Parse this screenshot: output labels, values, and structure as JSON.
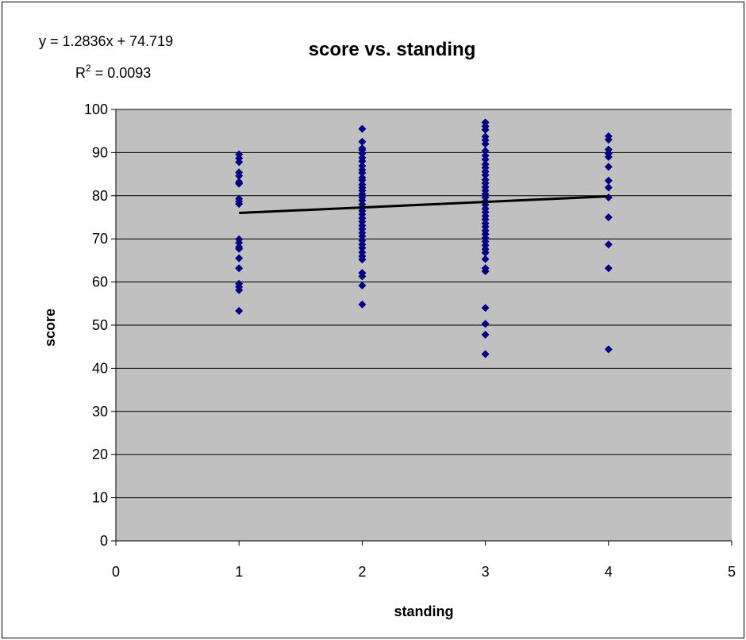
{
  "chart_data": {
    "type": "scatter",
    "title": "score vs. standing",
    "xlabel": "standing",
    "ylabel": "score",
    "xlim": [
      0,
      5
    ],
    "ylim": [
      0,
      100
    ],
    "xticks": [
      "0",
      "1",
      "2",
      "3",
      "4",
      "5"
    ],
    "yticks": [
      "0",
      "10",
      "20",
      "30",
      "40",
      "50",
      "60",
      "70",
      "80",
      "90",
      "100"
    ],
    "grid": "horizontal",
    "legend": "none",
    "colors": {
      "points": "#000080",
      "plot_area": "#c0c0c0",
      "trendline": "#000000"
    },
    "trendline": {
      "equation": "y = 1.2836x + 74.719",
      "r2_prefix": "R",
      "r2_sup": "2",
      "r2_suffix": " = 0.0093",
      "slope": 1.2836,
      "intercept": 74.719,
      "x_range": [
        1,
        4
      ]
    },
    "series": [
      {
        "points": [
          [
            1,
            89.6
          ],
          [
            1,
            88.7
          ],
          [
            1,
            87.8
          ],
          [
            1,
            85.4
          ],
          [
            1,
            84.6
          ],
          [
            1,
            83.2
          ],
          [
            1,
            82.8
          ],
          [
            1,
            79.3
          ],
          [
            1,
            78.7
          ],
          [
            1,
            78.1
          ],
          [
            1,
            69.9
          ],
          [
            1,
            69.1
          ],
          [
            1,
            68.1
          ],
          [
            1,
            67.7
          ],
          [
            1,
            65.5
          ],
          [
            1,
            63.2
          ],
          [
            1,
            59.6
          ],
          [
            1,
            58.9
          ],
          [
            1,
            58.1
          ],
          [
            1,
            53.3
          ],
          [
            2,
            95.5
          ],
          [
            2,
            92.5
          ],
          [
            2,
            91.0
          ],
          [
            2,
            90.6
          ],
          [
            2,
            89.8
          ],
          [
            2,
            88.8
          ],
          [
            2,
            88.0
          ],
          [
            2,
            86.9
          ],
          [
            2,
            86.0
          ],
          [
            2,
            85.3
          ],
          [
            2,
            84.2
          ],
          [
            2,
            83.6
          ],
          [
            2,
            82.6
          ],
          [
            2,
            81.9
          ],
          [
            2,
            81.2
          ],
          [
            2,
            80.4
          ],
          [
            2,
            79.6
          ],
          [
            2,
            78.9
          ],
          [
            2,
            78.0
          ],
          [
            2,
            77.2
          ],
          [
            2,
            76.5
          ],
          [
            2,
            75.7
          ],
          [
            2,
            74.8
          ],
          [
            2,
            74.0
          ],
          [
            2,
            73.1
          ],
          [
            2,
            72.3
          ],
          [
            2,
            71.4
          ],
          [
            2,
            70.6
          ],
          [
            2,
            69.6
          ],
          [
            2,
            68.7
          ],
          [
            2,
            67.9
          ],
          [
            2,
            66.9
          ],
          [
            2,
            66.0
          ],
          [
            2,
            65.2
          ],
          [
            2,
            62.1
          ],
          [
            2,
            61.3
          ],
          [
            2,
            59.2
          ],
          [
            2,
            54.8
          ],
          [
            3,
            97.0
          ],
          [
            3,
            96.1
          ],
          [
            3,
            95.3
          ],
          [
            3,
            93.7
          ],
          [
            3,
            92.9
          ],
          [
            3,
            92.0
          ],
          [
            3,
            90.4
          ],
          [
            3,
            89.3
          ],
          [
            3,
            88.4
          ],
          [
            3,
            87.3
          ],
          [
            3,
            86.5
          ],
          [
            3,
            85.6
          ],
          [
            3,
            84.8
          ],
          [
            3,
            83.7
          ],
          [
            3,
            82.9
          ],
          [
            3,
            82.0
          ],
          [
            3,
            81.2
          ],
          [
            3,
            80.4
          ],
          [
            3,
            79.6
          ],
          [
            3,
            78.7
          ],
          [
            3,
            77.9
          ],
          [
            3,
            77.0
          ],
          [
            3,
            76.2
          ],
          [
            3,
            75.3
          ],
          [
            3,
            74.5
          ],
          [
            3,
            73.6
          ],
          [
            3,
            72.8
          ],
          [
            3,
            71.9
          ],
          [
            3,
            71.1
          ],
          [
            3,
            70.2
          ],
          [
            3,
            69.4
          ],
          [
            3,
            68.5
          ],
          [
            3,
            67.6
          ],
          [
            3,
            66.8
          ],
          [
            3,
            65.3
          ],
          [
            3,
            63.2
          ],
          [
            3,
            62.5
          ],
          [
            3,
            54.0
          ],
          [
            3,
            50.3
          ],
          [
            3,
            47.8
          ],
          [
            3,
            43.3
          ],
          [
            4,
            93.8
          ],
          [
            4,
            93.0
          ],
          [
            4,
            90.7
          ],
          [
            4,
            89.8
          ],
          [
            4,
            89.0
          ],
          [
            4,
            86.7
          ],
          [
            4,
            83.5
          ],
          [
            4,
            81.9
          ],
          [
            4,
            79.6
          ],
          [
            4,
            75.0
          ],
          [
            4,
            68.7
          ],
          [
            4,
            63.2
          ],
          [
            4,
            44.4
          ]
        ]
      }
    ]
  }
}
